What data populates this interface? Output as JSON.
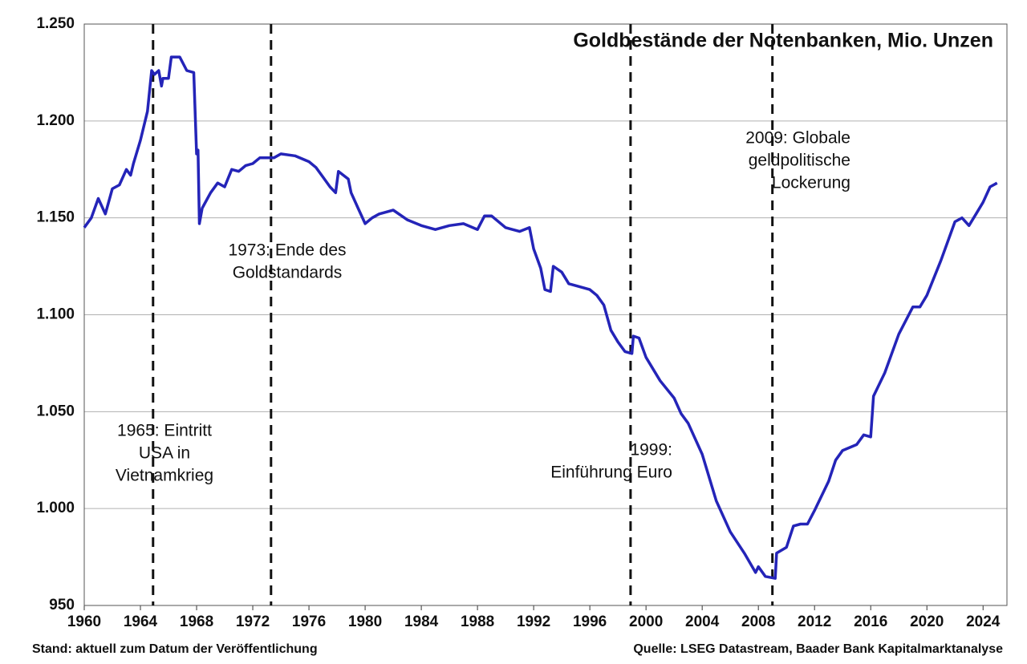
{
  "chart_data": {
    "type": "line",
    "title": "Goldbestände der Notenbanken, Mio. Unzen",
    "footer_left": "Stand: aktuell zum Datum der Veröffentlichung",
    "footer_right": "Quelle: LSEG Datastream, Baader Bank Kapitalmarktanalyse",
    "xlim": [
      1960,
      2025.7
    ],
    "ylim": [
      950,
      1250
    ],
    "xticks": [
      1960,
      1964,
      1968,
      1972,
      1976,
      1980,
      1984,
      1988,
      1992,
      1996,
      2000,
      2004,
      2008,
      2012,
      2016,
      2020,
      2024
    ],
    "yticks": [
      950,
      {
        "value": 1000,
        "label": "1.000"
      },
      {
        "value": 1050,
        "label": "1.050"
      },
      {
        "value": 1100,
        "label": "1.100"
      },
      {
        "value": 1150,
        "label": "1.150"
      },
      {
        "value": 1200,
        "label": "1.200"
      },
      {
        "value": 1250,
        "label": "1.250"
      }
    ],
    "grid": true,
    "annotations": [
      {
        "x": 1964.9,
        "text": [
          "1965: Eintritt",
          "USA in",
          "Vietnamkrieg"
        ]
      },
      {
        "x": 1973.3,
        "text": [
          "1973: Ende des",
          "Goldstandards"
        ]
      },
      {
        "x": 1998.9,
        "text": [
          "1999:",
          "Einführung Euro"
        ]
      },
      {
        "x": 2009,
        "text": [
          "2009: Globale",
          "geldpolitische",
          "Lockerung"
        ]
      }
    ],
    "series": [
      {
        "color": "#2424b8",
        "x": [
          1960,
          1960.5,
          1961,
          1961.5,
          1962,
          1962.5,
          1963,
          1963.3,
          1963.5,
          1964,
          1964.5,
          1964.8,
          1965,
          1965.3,
          1965.5,
          1965.6,
          1966,
          1966.2,
          1966.8,
          1967.3,
          1967.8,
          1968,
          1968.1,
          1968.2,
          1968.4,
          1969,
          1969.5,
          1970,
          1970.5,
          1971,
          1971.5,
          1972,
          1972.5,
          1973,
          1973.5,
          1974,
          1975,
          1976,
          1976.5,
          1977,
          1977.5,
          1977.9,
          1978.1,
          1978.8,
          1979,
          1979.5,
          1980,
          1980.5,
          1981,
          1981.5,
          1982,
          1983,
          1984,
          1985,
          1986,
          1987,
          1988,
          1988.5,
          1989,
          1990,
          1991,
          1991.7,
          1992,
          1992.5,
          1992.8,
          1993.2,
          1993.4,
          1994,
          1994.5,
          1995,
          1996,
          1996.5,
          1997,
          1997.5,
          1998,
          1998.5,
          1999,
          1999.1,
          1999.5,
          2000,
          2001,
          2002,
          2002.5,
          2003,
          2004,
          2005,
          2006,
          2007,
          2007.8,
          2008,
          2008.5,
          2009.2,
          2009.3,
          2010,
          2010.5,
          2011,
          2011.5,
          2012,
          2013,
          2013.5,
          2014,
          2015,
          2015.5,
          2016,
          2016.2,
          2017,
          2018,
          2019,
          2019.5,
          2020,
          2021,
          2022,
          2022.5,
          2023,
          2023.5,
          2024,
          2024.5,
          2025
        ],
        "values": [
          1145,
          1150,
          1160,
          1152,
          1165,
          1167,
          1175,
          1172,
          1178,
          1190,
          1205,
          1226,
          1224,
          1226,
          1218,
          1222,
          1222,
          1233,
          1233,
          1226,
          1225,
          1183,
          1185,
          1147,
          1155,
          1163,
          1168,
          1166,
          1175,
          1174,
          1177,
          1178,
          1181,
          1181,
          1181,
          1183,
          1182,
          1179,
          1176,
          1171,
          1166,
          1163,
          1174,
          1170,
          1163,
          1155,
          1147,
          1150,
          1152,
          1153,
          1154,
          1149,
          1146,
          1144,
          1146,
          1147,
          1144,
          1151,
          1151,
          1145,
          1143,
          1145,
          1134,
          1124,
          1113,
          1112,
          1125,
          1122,
          1116,
          1115,
          1113,
          1110,
          1105,
          1092,
          1086,
          1081,
          1080,
          1089,
          1088,
          1078,
          1066,
          1057,
          1049,
          1044,
          1028,
          1004,
          988,
          977,
          967,
          970,
          965,
          964,
          977,
          980,
          991,
          992,
          992,
          999,
          1014,
          1025,
          1030,
          1033,
          1038,
          1037,
          1058,
          1070,
          1090,
          1104,
          1104,
          1110,
          1128,
          1148,
          1150,
          1146,
          1152,
          1158,
          1166,
          1168
        ]
      }
    ]
  }
}
